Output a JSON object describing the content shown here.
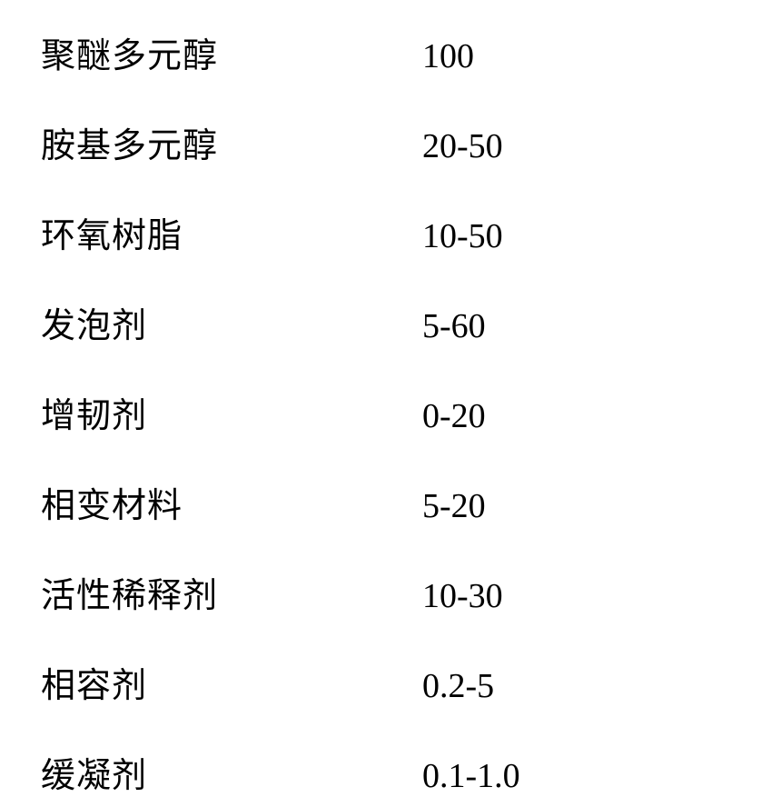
{
  "table": {
    "type": "table",
    "columns": [
      "component",
      "amount"
    ],
    "background_color": "#ffffff",
    "text_color": "#000000",
    "label_fontsize": 38,
    "value_fontsize": 38,
    "label_font": "SimSun",
    "value_font": "Times New Roman",
    "row_spacing": 44,
    "label_column_width": 420,
    "rows": [
      {
        "label": "聚醚多元醇",
        "value": "100"
      },
      {
        "label": "胺基多元醇",
        "value": "20-50"
      },
      {
        "label": "环氧树脂",
        "value": "10-50"
      },
      {
        "label": "发泡剂",
        "value": "5-60"
      },
      {
        "label": "增韧剂",
        "value": "0-20"
      },
      {
        "label": "相变材料",
        "value": "5-20"
      },
      {
        "label": "活性稀释剂",
        "value": "10-30"
      },
      {
        "label": "相容剂",
        "value": "0.2-5"
      },
      {
        "label": "缓凝剂",
        "value": "0.1-1.0"
      }
    ]
  }
}
